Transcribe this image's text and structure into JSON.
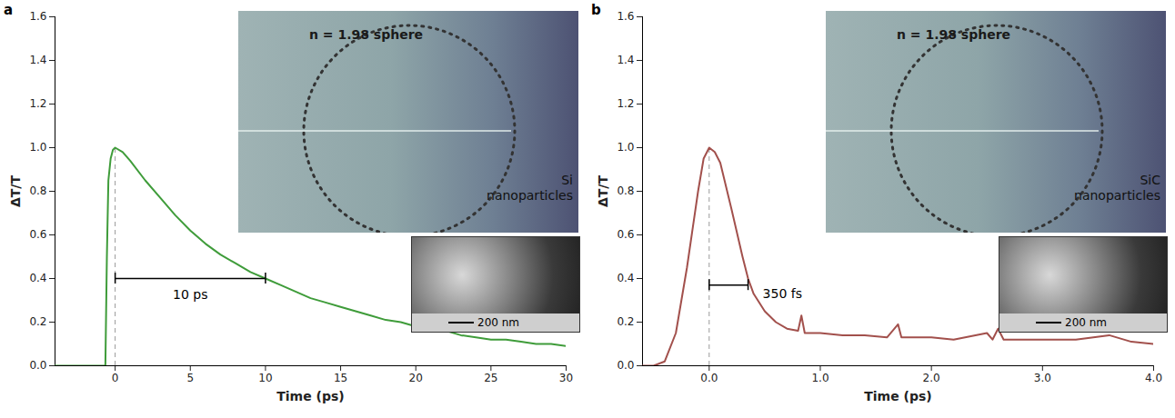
{
  "chart_data": [
    {
      "type": "line",
      "panel": "a",
      "xlabel": "Time (ps)",
      "ylabel": "ΔT/T",
      "color": "#3f9c3a",
      "xlim": [
        -4,
        30
      ],
      "xticks": [
        0,
        5,
        10,
        15,
        20,
        25,
        30
      ],
      "ylim": [
        0,
        1.6
      ],
      "yticks": [
        0,
        0.2,
        0.4,
        0.6,
        0.8,
        1.0,
        1.2,
        1.4,
        1.6
      ],
      "x": [
        -4,
        -3,
        -2,
        -1,
        -0.65,
        -0.55,
        -0.45,
        -0.3,
        -0.15,
        0,
        0.5,
        1,
        2,
        3,
        4,
        5,
        6,
        7,
        8,
        9,
        10,
        11,
        12,
        13,
        14,
        15,
        16,
        17,
        18,
        19,
        20,
        21,
        22,
        23,
        24,
        25,
        26,
        27,
        28,
        29,
        30
      ],
      "values": [
        0,
        0,
        0,
        0,
        0,
        0.5,
        0.85,
        0.95,
        0.99,
        1.0,
        0.98,
        0.94,
        0.85,
        0.77,
        0.69,
        0.62,
        0.56,
        0.51,
        0.47,
        0.43,
        0.4,
        0.37,
        0.34,
        0.31,
        0.29,
        0.27,
        0.25,
        0.23,
        0.21,
        0.2,
        0.18,
        0.17,
        0.16,
        0.14,
        0.13,
        0.12,
        0.12,
        0.11,
        0.1,
        0.1,
        0.09
      ],
      "annotations": [
        {
          "text": "10 ps",
          "x": [
            0,
            10
          ],
          "y": 0.4
        }
      ],
      "inset": {
        "label": "n = 1.98 sphere",
        "material": "Si nanoparticles",
        "scale_bar": "200 nm"
      }
    },
    {
      "type": "line",
      "panel": "b",
      "xlabel": "Time (ps)",
      "ylabel": "ΔT/T",
      "color": "#a2504c",
      "xlim": [
        -0.6,
        4
      ],
      "xticks": [
        0,
        1,
        2,
        3,
        4
      ],
      "ylim": [
        0,
        1.6
      ],
      "yticks": [
        0,
        0.2,
        0.4,
        0.6,
        0.8,
        1.0,
        1.2,
        1.4,
        1.6
      ],
      "x": [
        -0.6,
        -0.5,
        -0.4,
        -0.3,
        -0.2,
        -0.1,
        -0.05,
        0,
        0.05,
        0.1,
        0.2,
        0.3,
        0.35,
        0.4,
        0.5,
        0.6,
        0.7,
        0.8,
        0.83,
        0.86,
        1.0,
        1.2,
        1.4,
        1.6,
        1.7,
        1.73,
        2.0,
        2.2,
        2.5,
        2.55,
        2.6,
        2.65,
        3.0,
        3.3,
        3.6,
        3.8,
        4.0
      ],
      "values": [
        0,
        0,
        0.02,
        0.15,
        0.45,
        0.8,
        0.95,
        1.0,
        0.98,
        0.93,
        0.72,
        0.5,
        0.4,
        0.33,
        0.25,
        0.2,
        0.17,
        0.16,
        0.23,
        0.15,
        0.15,
        0.14,
        0.14,
        0.13,
        0.19,
        0.13,
        0.13,
        0.12,
        0.15,
        0.12,
        0.17,
        0.12,
        0.12,
        0.12,
        0.14,
        0.11,
        0.1
      ],
      "annotations": [
        {
          "text": "350 fs",
          "x": [
            0,
            0.35
          ],
          "y": 0.37
        }
      ],
      "inset": {
        "label": "n = 1.98 sphere",
        "material": "SiC nanoparticles",
        "scale_bar": "200 nm"
      }
    }
  ]
}
